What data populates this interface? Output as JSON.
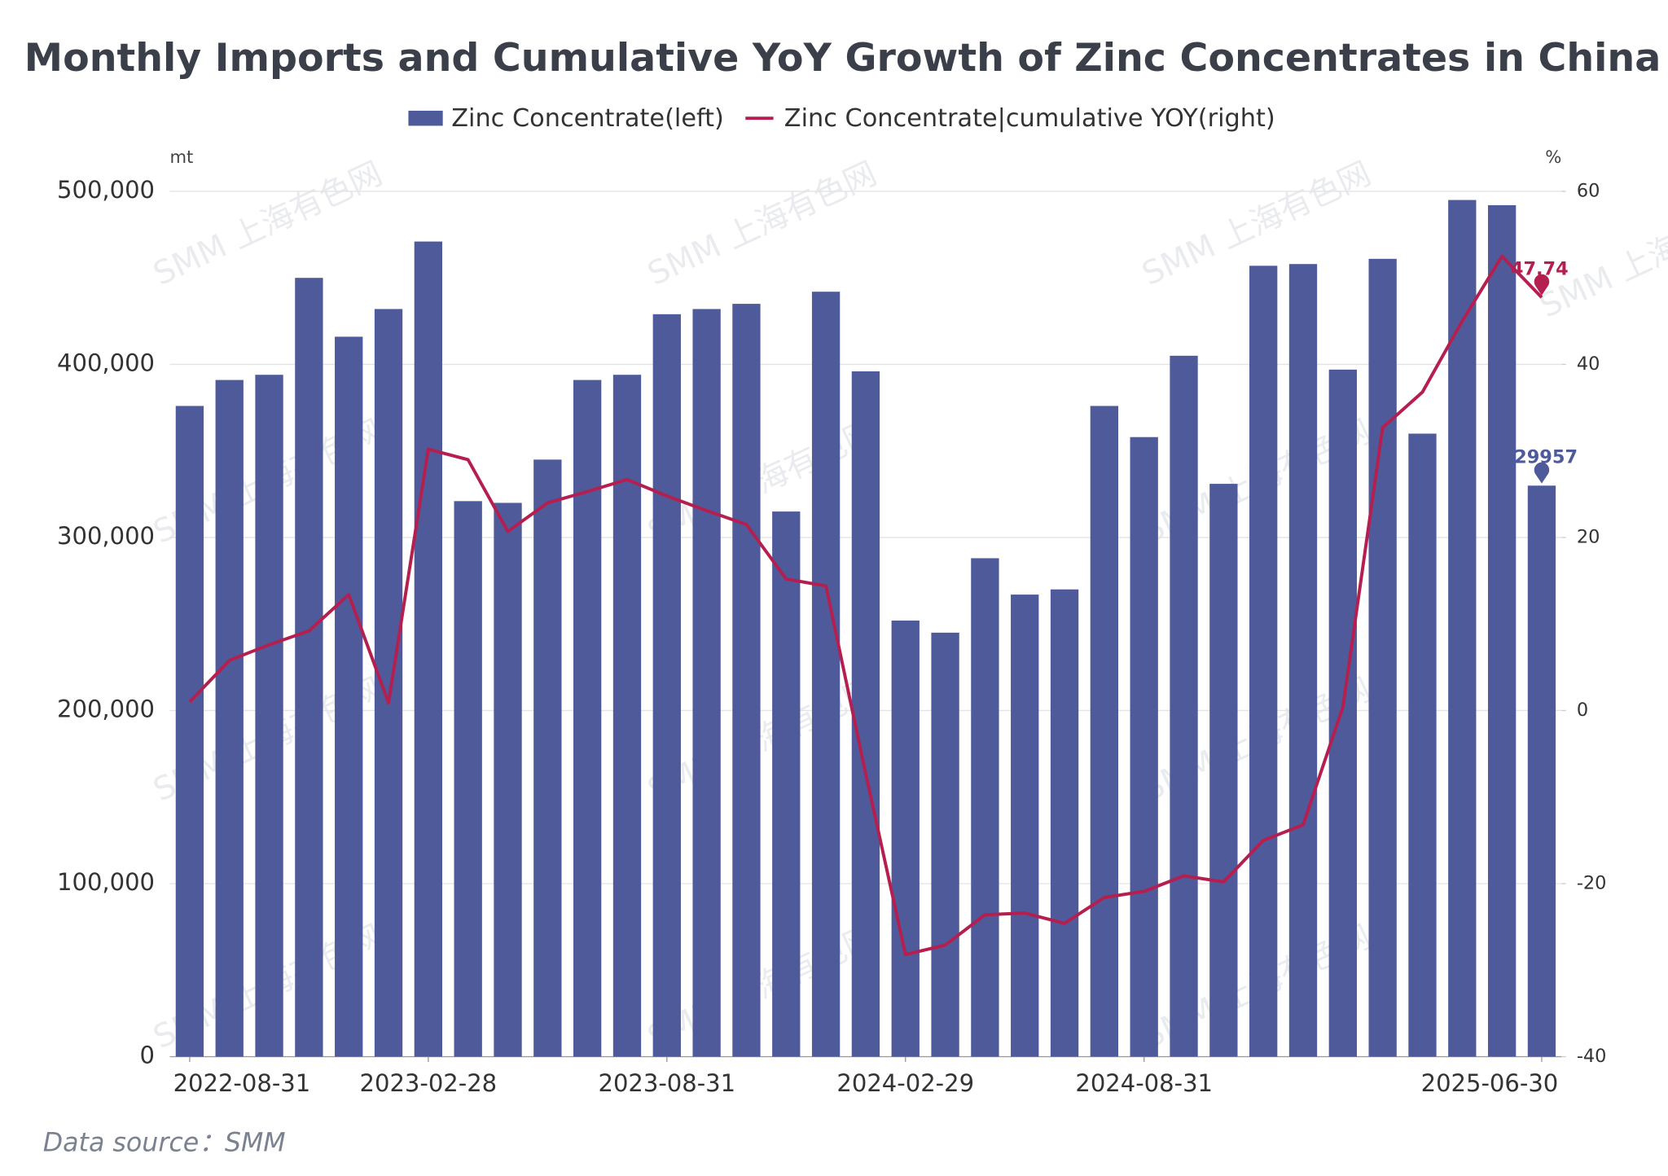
{
  "chart_data": {
    "type": "bar_line",
    "title": "Monthly Imports and Cumulative YoY Growth of Zinc Concentrates in China",
    "y_label": "mt",
    "y2_label": "%",
    "source": "Data source：SMM",
    "watermark": "SMM 上海有色网",
    "categories": [
      "2022-08-31",
      null,
      null,
      null,
      null,
      null,
      "2023-02-28",
      null,
      null,
      null,
      null,
      null,
      "2023-08-31",
      null,
      null,
      null,
      null,
      null,
      "2024-02-29",
      null,
      null,
      null,
      null,
      null,
      "2024-08-31",
      null,
      null,
      null,
      null,
      null,
      null,
      null,
      null,
      null,
      "2025-06-30"
    ],
    "series": [
      {
        "name": "Zinc Concentrate(left)",
        "type": "bar",
        "color": "#4e5a9a",
        "values": [
          376000,
          391000,
          394000,
          450000,
          416000,
          432000,
          471000,
          321000,
          320000,
          345000,
          391000,
          394000,
          429000,
          432000,
          435000,
          315000,
          442000,
          396000,
          252000,
          245000,
          288000,
          267000,
          270000,
          376000,
          358000,
          405000,
          331000,
          457000,
          458000,
          397000,
          461000,
          360000,
          495000,
          492000,
          329957
        ]
      },
      {
        "name": "Zinc Concentrate|cumulative YOY(right)",
        "type": "line",
        "axis": "y2",
        "color": "#b51f4f",
        "values": [
          1.0,
          5.8,
          7.6,
          9.2,
          13.4,
          0.9,
          30.2,
          29.0,
          20.7,
          24.0,
          25.3,
          26.7,
          24.8,
          23.1,
          21.5,
          15.2,
          14.4,
          -7.3,
          -28.2,
          -27.1,
          -23.6,
          -23.4,
          -24.6,
          -21.6,
          -20.9,
          -19.1,
          -19.8,
          -15.0,
          -13.2,
          0.4,
          32.7,
          36.8,
          45.0,
          52.5,
          47.74
        ]
      }
    ],
    "ylim": [
      0,
      500000
    ],
    "yticks": [
      0,
      {
        "value": 100000,
        "label": "100,000"
      },
      {
        "value": 200000,
        "label": "200,000"
      },
      {
        "value": 300000,
        "label": "300,000"
      },
      {
        "value": 400000,
        "label": "400,000"
      },
      {
        "value": 500000,
        "label": "500,000"
      }
    ],
    "y2lim": [
      -40,
      60
    ],
    "y2ticks": [
      -40,
      -20,
      0,
      20,
      40,
      60
    ],
    "grid": true,
    "legend": "top"
  }
}
